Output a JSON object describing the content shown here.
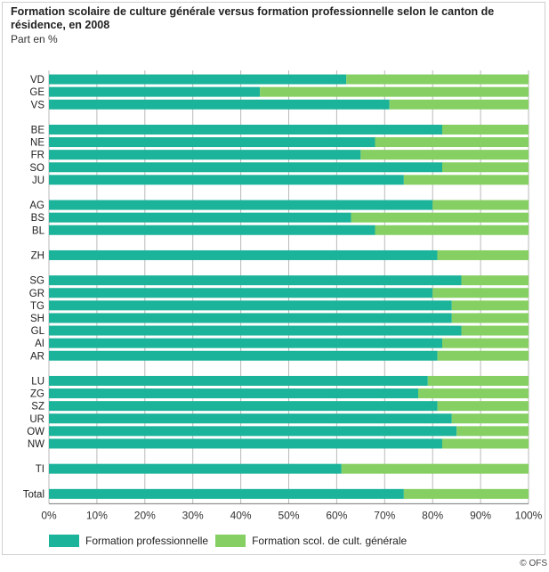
{
  "colors": {
    "professional": "#1bb39a",
    "general": "#86cf62",
    "grid": "#b9b9b9"
  },
  "chart_data": {
    "type": "bar",
    "orientation": "horizontal",
    "stacked": true,
    "title": "Formation scolaire de culture générale versus formation professionnelle selon le canton de résidence, en 2008",
    "subtitle": "Part en %",
    "xlim": [
      0,
      100
    ],
    "x_ticks": [
      "0%",
      "10%",
      "20%",
      "30%",
      "40%",
      "50%",
      "60%",
      "70%",
      "80%",
      "90%",
      "100%"
    ],
    "grid": true,
    "legend_position": "bottom",
    "categories": [
      "VD",
      "GE",
      "VS",
      "BE",
      "NE",
      "FR",
      "SO",
      "JU",
      "AG",
      "BS",
      "BL",
      "ZH",
      "SG",
      "GR",
      "TG",
      "SH",
      "GL",
      "AI",
      "AR",
      "LU",
      "ZG",
      "SZ",
      "UR",
      "OW",
      "NW",
      "TI",
      "Total"
    ],
    "groups": [
      [
        "VD",
        "GE",
        "VS"
      ],
      [
        "BE",
        "NE",
        "FR",
        "SO",
        "JU"
      ],
      [
        "AG",
        "BS",
        "BL"
      ],
      [
        "ZH"
      ],
      [
        "SG",
        "GR",
        "TG",
        "SH",
        "GL",
        "AI",
        "AR"
      ],
      [
        "LU",
        "ZG",
        "SZ",
        "UR",
        "OW",
        "NW"
      ],
      [
        "TI"
      ],
      [
        "Total"
      ]
    ],
    "series": [
      {
        "name": "Formation professionnelle",
        "values": [
          62,
          44,
          71,
          82,
          68,
          65,
          82,
          74,
          80,
          63,
          68,
          81,
          86,
          80,
          84,
          84,
          86,
          82,
          81,
          79,
          77,
          81,
          84,
          85,
          82,
          61,
          74
        ]
      },
      {
        "name": "Formation scol. de cult. générale",
        "values": [
          38,
          56,
          29,
          18,
          32,
          35,
          18,
          26,
          20,
          37,
          32,
          19,
          14,
          20,
          16,
          16,
          14,
          18,
          19,
          21,
          23,
          19,
          16,
          15,
          18,
          39,
          26
        ]
      }
    ]
  },
  "credit": "© OFS"
}
